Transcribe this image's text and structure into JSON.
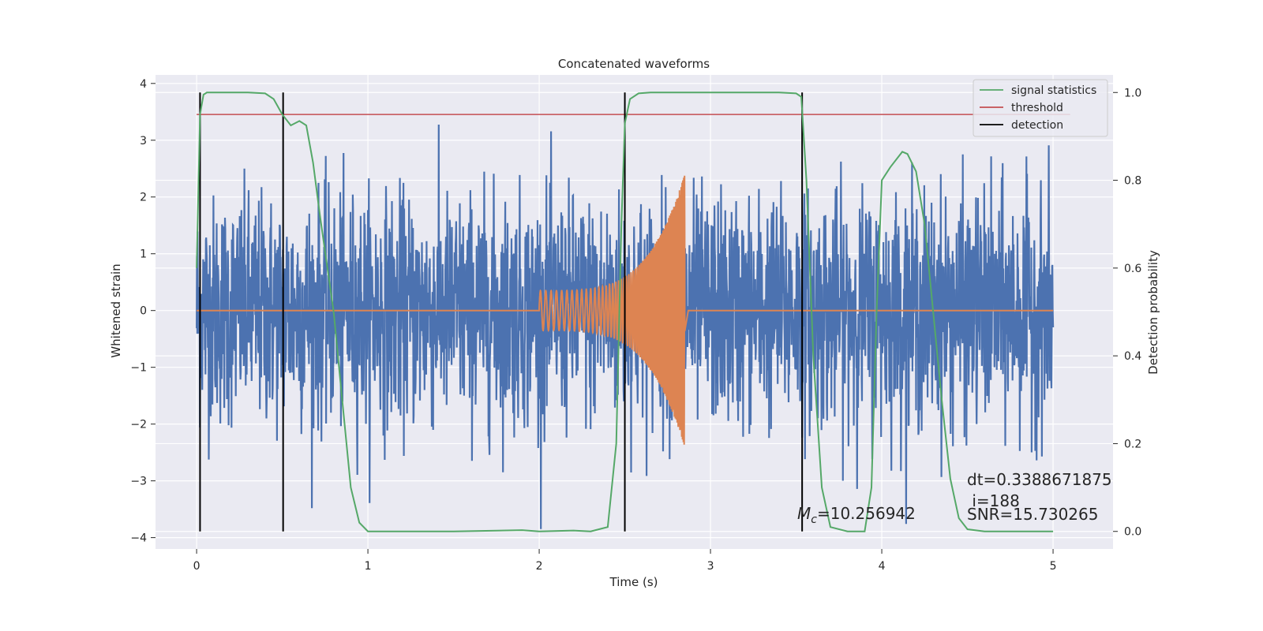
{
  "chart_data": {
    "type": "line",
    "title": "Concatenated waveforms",
    "xlabel": "Time (s)",
    "ylabel": "Whitened strain",
    "y2label": "Detection probability",
    "xlim": [
      -0.24,
      5.35
    ],
    "ylim": [
      -4.2,
      4.15
    ],
    "y2lim": [
      -0.04,
      1.04
    ],
    "xticks": [
      0,
      1,
      2,
      3,
      4,
      5
    ],
    "xtick_labels": [
      "0",
      "1",
      "2",
      "3",
      "4",
      "5"
    ],
    "yticks": [
      -4,
      -3,
      -2,
      -1,
      0,
      1,
      2,
      3,
      4
    ],
    "ytick_labels": [
      "−4",
      "−3",
      "−2",
      "−1",
      "0",
      "1",
      "2",
      "3",
      "4"
    ],
    "y2ticks": [
      0.0,
      0.2,
      0.4,
      0.6,
      0.8,
      1.0
    ],
    "y2tick_labels": [
      "0.0",
      "0.2",
      "0.4",
      "0.6",
      "0.8",
      "1.0"
    ],
    "grid": true,
    "legend_position": "top-right",
    "colors": {
      "noise": "#4c72b0",
      "injection": "#dd8452",
      "signal_statistics": "#55a868",
      "threshold": "#c44e52",
      "detection": "#000000",
      "background": "#eaeaf2",
      "grid": "#ffffff"
    },
    "series": [
      {
        "name": "whitened strain",
        "description": "noise",
        "x_range": [
          0,
          5
        ],
        "amplitude_typical": 1.0,
        "min": -3.85,
        "max": 3.8
      },
      {
        "name": "injected chirp",
        "description": "chirp from 2.0 s to 2.85 s",
        "x_range": [
          2.0,
          2.85
        ],
        "amplitude_start": 0.35,
        "amplitude_peak": 2.4
      },
      {
        "name": "signal statistics",
        "axis": "right",
        "x": [
          0.0,
          0.02,
          0.04,
          0.06,
          0.1,
          0.2,
          0.3,
          0.4,
          0.45,
          0.5,
          0.55,
          0.6,
          0.64,
          0.68,
          0.72,
          0.8,
          0.85,
          0.9,
          0.95,
          1.0,
          1.5,
          1.9,
          2.0,
          2.2,
          2.3,
          2.4,
          2.45,
          2.48,
          2.5,
          2.53,
          2.58,
          2.65,
          3.0,
          3.4,
          3.5,
          3.53,
          3.56,
          3.6,
          3.65,
          3.7,
          3.8,
          3.9,
          3.94,
          3.97,
          4.0,
          4.05,
          4.1,
          4.12,
          4.15,
          4.2,
          4.25,
          4.3,
          4.35,
          4.4,
          4.45,
          4.5,
          4.6,
          5.0
        ],
        "y": [
          0.6,
          0.95,
          0.995,
          1.0,
          1.0,
          1.0,
          1.0,
          0.998,
          0.985,
          0.95,
          0.925,
          0.935,
          0.925,
          0.84,
          0.72,
          0.5,
          0.3,
          0.1,
          0.02,
          0.0,
          0.0,
          0.003,
          0.0,
          0.002,
          0.0,
          0.01,
          0.2,
          0.7,
          0.93,
          0.985,
          0.998,
          1.0,
          1.0,
          1.0,
          0.998,
          0.99,
          0.8,
          0.4,
          0.1,
          0.01,
          0.0,
          0.0,
          0.1,
          0.5,
          0.8,
          0.83,
          0.855,
          0.865,
          0.86,
          0.82,
          0.7,
          0.5,
          0.3,
          0.12,
          0.03,
          0.005,
          0.0,
          0.0
        ]
      },
      {
        "name": "threshold",
        "axis": "right",
        "x": [
          0,
          5.1
        ],
        "y": [
          0.95,
          0.95
        ]
      },
      {
        "name": "detection",
        "axis": "right",
        "type": "vlines",
        "x": [
          0.02,
          0.505,
          2.5,
          3.535
        ],
        "y_range": [
          0.0,
          1.0
        ]
      }
    ],
    "legend": [
      "signal statistics",
      "threshold",
      "detection"
    ],
    "annotations": {
      "mc_symbol": "M",
      "mc_sub": "c",
      "mc_text": "=10.256942",
      "dt": "dt=0.3388671875",
      "i": " i=188",
      "snr": "SNR=15.730265"
    }
  }
}
